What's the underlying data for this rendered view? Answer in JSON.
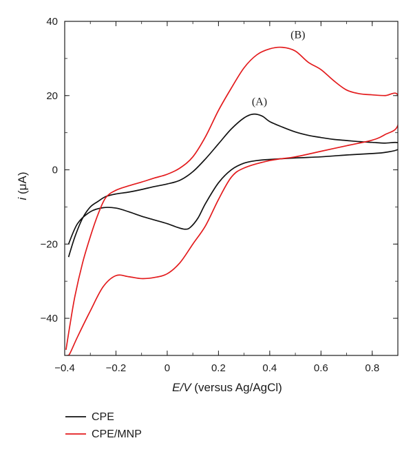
{
  "chart_data": {
    "type": "line",
    "xlabel_italic": "E/V",
    "xlabel_rest": " (versus Ag/AgCl)",
    "ylabel_italic": "i",
    "ylabel_rest": " (μA)",
    "xlim": [
      -0.4,
      0.9
    ],
    "ylim": [
      -50,
      40
    ],
    "x_ticks": [
      -0.4,
      -0.2,
      0,
      0.2,
      0.4,
      0.6,
      0.8
    ],
    "x_tick_labels": [
      "−0.4",
      "−0.2",
      "0",
      "0.2",
      "0.4",
      "0.6",
      "0.8"
    ],
    "y_ticks": [
      -40,
      -20,
      0,
      20,
      40
    ],
    "y_tick_labels": [
      "−40",
      "−20",
      "0",
      "20",
      "40"
    ],
    "grid": false,
    "legend_position": "bottom-left, below plot",
    "annotations": [
      {
        "text": "(A)",
        "x": 0.36,
        "y": 17.5
      },
      {
        "text": "(B)",
        "x": 0.51,
        "y": 35.5
      }
    ],
    "series": [
      {
        "name": "CPE",
        "color": "#111111",
        "points": [
          [
            -0.385,
            -23.5
          ],
          [
            -0.36,
            -18
          ],
          [
            -0.33,
            -13
          ],
          [
            -0.3,
            -10
          ],
          [
            -0.27,
            -8.5
          ],
          [
            -0.24,
            -7.2
          ],
          [
            -0.2,
            -6.5
          ],
          [
            -0.15,
            -6
          ],
          [
            -0.1,
            -5.3
          ],
          [
            -0.05,
            -4.5
          ],
          [
            0,
            -3.8
          ],
          [
            0.05,
            -2.8
          ],
          [
            0.1,
            -0.5
          ],
          [
            0.15,
            3
          ],
          [
            0.2,
            7
          ],
          [
            0.25,
            11
          ],
          [
            0.3,
            14
          ],
          [
            0.335,
            15
          ],
          [
            0.37,
            14.5
          ],
          [
            0.4,
            13
          ],
          [
            0.45,
            11.5
          ],
          [
            0.5,
            10.2
          ],
          [
            0.55,
            9.3
          ],
          [
            0.6,
            8.7
          ],
          [
            0.65,
            8.2
          ],
          [
            0.7,
            7.9
          ],
          [
            0.75,
            7.6
          ],
          [
            0.8,
            7.4
          ],
          [
            0.85,
            7.2
          ],
          [
            0.9,
            7.3
          ],
          [
            0.9,
            5.5
          ],
          [
            0.85,
            4.7
          ],
          [
            0.8,
            4.4
          ],
          [
            0.7,
            4
          ],
          [
            0.6,
            3.5
          ],
          [
            0.5,
            3.2
          ],
          [
            0.4,
            2.8
          ],
          [
            0.35,
            2.5
          ],
          [
            0.3,
            1.8
          ],
          [
            0.25,
            0
          ],
          [
            0.2,
            -3.5
          ],
          [
            0.15,
            -9
          ],
          [
            0.12,
            -13
          ],
          [
            0.09,
            -15.5
          ],
          [
            0.07,
            -16
          ],
          [
            0.04,
            -15.5
          ],
          [
            0,
            -14.5
          ],
          [
            -0.05,
            -13.5
          ],
          [
            -0.1,
            -12.5
          ],
          [
            -0.15,
            -11.3
          ],
          [
            -0.2,
            -10.3
          ],
          [
            -0.25,
            -10.2
          ],
          [
            -0.3,
            -11.3
          ],
          [
            -0.35,
            -14.5
          ],
          [
            -0.385,
            -20
          ]
        ]
      },
      {
        "name": "CPE/MNP",
        "color": "#e31a1c",
        "points": [
          [
            -0.395,
            -48.5
          ],
          [
            -0.38,
            -42
          ],
          [
            -0.36,
            -34
          ],
          [
            -0.33,
            -25
          ],
          [
            -0.3,
            -18
          ],
          [
            -0.27,
            -12
          ],
          [
            -0.24,
            -7.5
          ],
          [
            -0.2,
            -5.5
          ],
          [
            -0.15,
            -4.3
          ],
          [
            -0.1,
            -3.3
          ],
          [
            -0.05,
            -2.2
          ],
          [
            0,
            -1.2
          ],
          [
            0.05,
            0.5
          ],
          [
            0.1,
            3.5
          ],
          [
            0.15,
            9
          ],
          [
            0.2,
            16
          ],
          [
            0.25,
            22
          ],
          [
            0.3,
            27.5
          ],
          [
            0.35,
            31
          ],
          [
            0.4,
            32.6
          ],
          [
            0.45,
            33
          ],
          [
            0.5,
            32
          ],
          [
            0.55,
            29
          ],
          [
            0.6,
            27
          ],
          [
            0.65,
            24
          ],
          [
            0.7,
            21.5
          ],
          [
            0.75,
            20.5
          ],
          [
            0.8,
            20.2
          ],
          [
            0.85,
            20
          ],
          [
            0.9,
            20.1
          ],
          [
            0.9,
            12
          ],
          [
            0.85,
            9.5
          ],
          [
            0.8,
            8
          ],
          [
            0.7,
            6.5
          ],
          [
            0.6,
            5
          ],
          [
            0.5,
            3.5
          ],
          [
            0.4,
            2.5
          ],
          [
            0.3,
            0.5
          ],
          [
            0.25,
            -2
          ],
          [
            0.2,
            -8
          ],
          [
            0.15,
            -15
          ],
          [
            0.1,
            -20
          ],
          [
            0.05,
            -25
          ],
          [
            0,
            -28
          ],
          [
            -0.05,
            -29
          ],
          [
            -0.1,
            -29.3
          ],
          [
            -0.15,
            -28.8
          ],
          [
            -0.2,
            -28.5
          ],
          [
            -0.25,
            -31.5
          ],
          [
            -0.3,
            -38
          ],
          [
            -0.35,
            -45
          ],
          [
            -0.38,
            -49.5
          ],
          [
            -0.39,
            -50
          ]
        ]
      }
    ]
  }
}
